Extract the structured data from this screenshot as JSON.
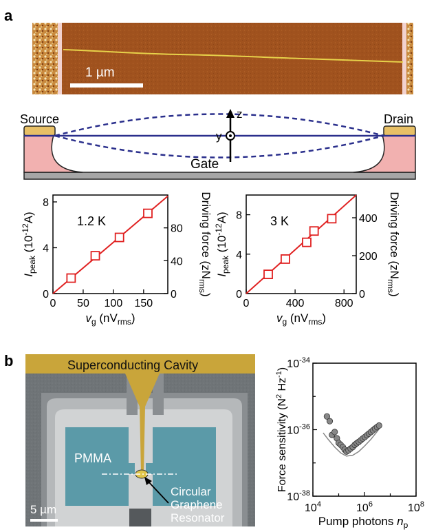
{
  "panel_a": {
    "label": "a",
    "afm": {
      "scalebar_label": "1 µm"
    },
    "schematic": {
      "source": "Source",
      "drain": "Drain",
      "gate": "Gate",
      "axis_z": "z",
      "axis_y": "y"
    },
    "colors": {
      "afm_bg": "#a0521e",
      "contact_gold": "#e8c066",
      "substrate_pink": "#f2b1b0",
      "bottom_gray": "#a6a6a6",
      "mode_blue": "#2a2f8c",
      "fit_red": "#e02020"
    }
  },
  "panel_b": {
    "label": "b",
    "sem": {
      "title": "Superconducting Cavity",
      "pmma": "PMMA",
      "resonator_lines": [
        "Circular",
        "Graphene",
        "Resonator"
      ],
      "scalebar_label": "5 µm"
    }
  },
  "chart_data": [
    {
      "type": "scatter",
      "annotation": "1.2 K",
      "ylabel": "I_peak (10^-12 A)",
      "ylabel_parts": {
        "main": "I",
        "sub": "peak",
        "rest_a": " (10",
        "sup": "-12",
        "rest_b": "A)"
      },
      "xlabel_parts": {
        "main": "v",
        "sub": "g",
        "rest_a": " (nV",
        "sub2": "rms",
        "rest_b": ")"
      },
      "y2label_parts": {
        "main": "Driving force  (zN",
        "sub": "rms",
        "rest": ")"
      },
      "xlim": [
        0,
        190
      ],
      "ylim": [
        0,
        8.6
      ],
      "y2lim": [
        0,
        120
      ],
      "xticks": [
        0,
        50,
        100,
        150
      ],
      "yticks": [
        0,
        4,
        8
      ],
      "y2ticks": [
        0,
        40,
        80
      ],
      "points": [
        {
          "x": 30,
          "y": 1.35
        },
        {
          "x": 70,
          "y": 3.3
        },
        {
          "x": 110,
          "y": 4.9
        },
        {
          "x": 157,
          "y": 7.0
        }
      ],
      "fit_line": [
        {
          "x": 0,
          "y": 0
        },
        {
          "x": 190,
          "y": 8.5
        }
      ]
    },
    {
      "type": "scatter",
      "annotation": "3 K",
      "ylabel": "I_peak (10^-12 A)",
      "ylabel_parts": {
        "main": "I",
        "sub": "peak",
        "rest_a": " (10",
        "sup": "-12",
        "rest_b": "A)"
      },
      "xlabel_parts": {
        "main": "v",
        "sub": "g",
        "rest_a": " (nV",
        "sub2": "rms",
        "rest_b": ")"
      },
      "y2label_parts": {
        "main": "Driving force  (zN",
        "sub": "rms",
        "rest": ")"
      },
      "xlim": [
        0,
        900
      ],
      "ylim": [
        0,
        10
      ],
      "y2lim": [
        0,
        520
      ],
      "xticks": [
        0,
        400,
        800
      ],
      "yticks": [
        0,
        4,
        8
      ],
      "y2ticks": [
        0,
        200,
        400
      ],
      "points": [
        {
          "x": 180,
          "y": 1.95
        },
        {
          "x": 320,
          "y": 3.5
        },
        {
          "x": 495,
          "y": 5.2
        },
        {
          "x": 555,
          "y": 6.35
        },
        {
          "x": 700,
          "y": 7.6
        }
      ],
      "fit_line": [
        {
          "x": 0,
          "y": 0
        },
        {
          "x": 900,
          "y": 10
        }
      ]
    },
    {
      "type": "scatter",
      "xscale": "log",
      "yscale": "log",
      "ylabel_parts": {
        "main": "Force sensitivity (N",
        "sup": "2",
        "mid": " Hz",
        "sup2": "-1",
        "rest": ")"
      },
      "xlabel_parts": {
        "main": "Pump photons ",
        "italic": "n",
        "sub": "p"
      },
      "xlim": [
        10000,
        100000000
      ],
      "ylim": [
        1e-38,
        1e-34
      ],
      "xticks": [
        {
          "v": 10000,
          "b": "10",
          "e": "4"
        },
        {
          "v": 1000000,
          "b": "10",
          "e": "6"
        },
        {
          "v": 100000000,
          "b": "10",
          "e": "8"
        }
      ],
      "yticks": [
        {
          "v": 1e-34,
          "b": "10",
          "e": "-34"
        },
        {
          "v": 1e-36,
          "b": "10",
          "e": "-36"
        },
        {
          "v": 1e-38,
          "b": "10",
          "e": "-38"
        }
      ],
      "points": [
        {
          "x": 35000,
          "y": 2.5e-36
        },
        {
          "x": 45000,
          "y": 1.8e-36
        },
        {
          "x": 55000,
          "y": 7e-37
        },
        {
          "x": 70000,
          "y": 8.5e-37
        },
        {
          "x": 85000,
          "y": 5.5e-37
        },
        {
          "x": 100000,
          "y": 4e-37
        },
        {
          "x": 120000,
          "y": 3.5e-37
        },
        {
          "x": 145000,
          "y": 3e-37
        },
        {
          "x": 170000,
          "y": 2.5e-37
        },
        {
          "x": 200000,
          "y": 2.2e-37
        },
        {
          "x": 240000,
          "y": 2.4e-37
        },
        {
          "x": 290000,
          "y": 2.7e-37
        },
        {
          "x": 350000,
          "y": 3e-37
        },
        {
          "x": 420000,
          "y": 3.5e-37
        },
        {
          "x": 500000,
          "y": 3.9e-37
        },
        {
          "x": 600000,
          "y": 4.3e-37
        },
        {
          "x": 720000,
          "y": 4.8e-37
        },
        {
          "x": 860000,
          "y": 5.4e-37
        },
        {
          "x": 1030000,
          "y": 6e-37
        },
        {
          "x": 1240000,
          "y": 6.8e-37
        },
        {
          "x": 1480000,
          "y": 7.6e-37
        },
        {
          "x": 1780000,
          "y": 8.5e-37
        },
        {
          "x": 2130000,
          "y": 9.6e-37
        },
        {
          "x": 2560000,
          "y": 1.08e-36
        },
        {
          "x": 3070000,
          "y": 1.2e-36
        },
        {
          "x": 3680000,
          "y": 1.33e-36
        }
      ],
      "theory_curve": [
        {
          "x": 25000,
          "y": 8e-37
        },
        {
          "x": 40000,
          "y": 5e-37
        },
        {
          "x": 70000,
          "y": 3e-37
        },
        {
          "x": 120000,
          "y": 2e-37
        },
        {
          "x": 200000,
          "y": 1.6e-37
        },
        {
          "x": 350000,
          "y": 1.7e-37
        },
        {
          "x": 600000,
          "y": 2.2e-37
        },
        {
          "x": 1000000,
          "y": 3.2e-37
        },
        {
          "x": 1800000,
          "y": 5.2e-37
        },
        {
          "x": 3000000,
          "y": 8.5e-37
        },
        {
          "x": 4500000,
          "y": 1.3e-36
        }
      ]
    }
  ]
}
